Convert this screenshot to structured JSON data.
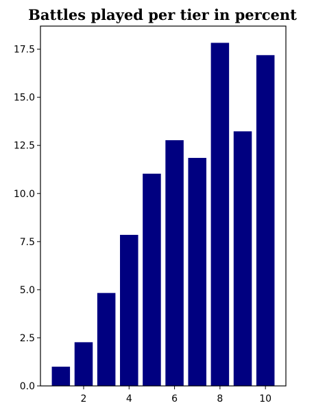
{
  "chart_data": {
    "type": "bar",
    "title": "Battles played per tier in percent",
    "xlabel": "",
    "ylabel": "",
    "categories": [
      1,
      2,
      3,
      4,
      5,
      6,
      7,
      8,
      9,
      10
    ],
    "values": [
      1.0,
      2.27,
      4.83,
      7.85,
      11.03,
      12.77,
      11.85,
      17.83,
      13.23,
      17.19
    ],
    "xticks": [
      "2",
      "4",
      "6",
      "8",
      "10"
    ],
    "xtick_values": [
      2,
      4,
      6,
      8,
      10
    ],
    "yticks": [
      "0.0",
      "2.5",
      "5.0",
      "7.5",
      "10.0",
      "12.5",
      "15.0",
      "17.5"
    ],
    "ytick_values": [
      0,
      2.5,
      5,
      7.5,
      10,
      12.5,
      15,
      17.5
    ],
    "xlim": [
      0.1,
      10.9
    ],
    "ylim": [
      0,
      18.7
    ],
    "bar_color": "#000080",
    "grid": false,
    "legend": "none"
  }
}
